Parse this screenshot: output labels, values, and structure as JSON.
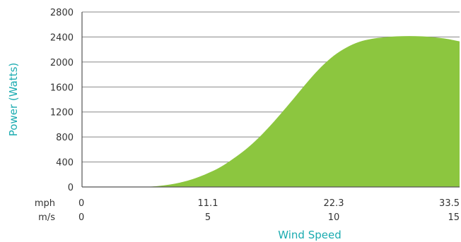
{
  "chart_data": {
    "type": "area",
    "ylabel": "Power (Watts)",
    "xlabel": "Wind Speed",
    "y_ticks": [
      "0",
      "400",
      "800",
      "1200",
      "1600",
      "2000",
      "2400",
      "2800"
    ],
    "ylim": [
      0,
      2800
    ],
    "xlim_ms": [
      0,
      15
    ],
    "x_ticks_mph": {
      "unit": "mph",
      "labels": [
        "0",
        "11.1",
        "22.3",
        "33.5"
      ]
    },
    "x_ticks_ms": {
      "unit": "m/s",
      "labels": [
        "0",
        "5",
        "10",
        "15"
      ]
    },
    "grid": true,
    "series": [
      {
        "x": [
          2.5,
          3,
          3.5,
          4,
          4.5,
          5,
          5.5,
          6,
          6.5,
          7,
          7.5,
          8,
          8.5,
          9,
          9.5,
          10,
          10.5,
          11,
          11.5,
          12,
          12.5,
          13,
          13.5,
          14,
          14.5,
          15
        ],
        "y": [
          0,
          15,
          40,
          80,
          140,
          220,
          320,
          450,
          600,
          780,
          990,
          1220,
          1460,
          1700,
          1920,
          2100,
          2230,
          2320,
          2370,
          2395,
          2410,
          2415,
          2410,
          2395,
          2370,
          2330
        ]
      }
    ],
    "colors": {
      "fill": "#8cc63f",
      "axis_title": "#1aabb0",
      "grid": "#888888",
      "axis": "#555555"
    }
  }
}
